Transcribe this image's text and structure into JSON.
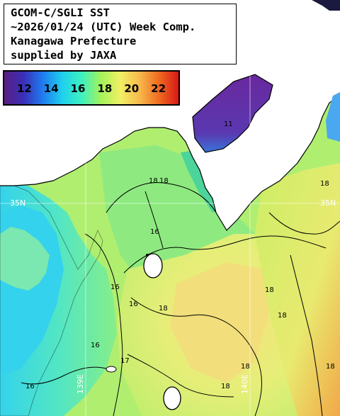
{
  "title": {
    "lines": [
      "GCOM-C/SGLI SST",
      "~2026/01/24 (UTC) Week Comp.",
      "Kanagawa Prefecture",
      "supplied by JAXA"
    ]
  },
  "legend": {
    "ticks": [
      {
        "value": 12,
        "label": "12"
      },
      {
        "value": 14,
        "label": "14"
      },
      {
        "value": 16,
        "label": "16"
      },
      {
        "value": 18,
        "label": "18"
      },
      {
        "value": 20,
        "label": "20"
      },
      {
        "value": 22,
        "label": "22"
      }
    ],
    "range": [
      10.5,
      23.5
    ],
    "colors": [
      "#5a1e82",
      "#3a2fb8",
      "#1f7cf0",
      "#1fd0ee",
      "#3ef0c0",
      "#a4f25a",
      "#f2f064",
      "#f7b84c",
      "#f06a20",
      "#d81818"
    ]
  },
  "map": {
    "land_color": "#ffffff",
    "water_colors": {
      "bay_inner": "#6a2aa0",
      "bay_mid": "#3fd08a",
      "west": "#3ad4e2",
      "central": "#9eec74",
      "south": "#eee87a",
      "east_edge": "#f0b04a"
    },
    "contour_labels": [
      "18",
      "18",
      "16",
      "16",
      "16",
      "18",
      "17",
      "16",
      "16",
      "18",
      "18",
      "18",
      "18",
      "11",
      "18",
      "18"
    ],
    "grid_labels": [
      "35N",
      "35N",
      "139E",
      "140E"
    ]
  }
}
